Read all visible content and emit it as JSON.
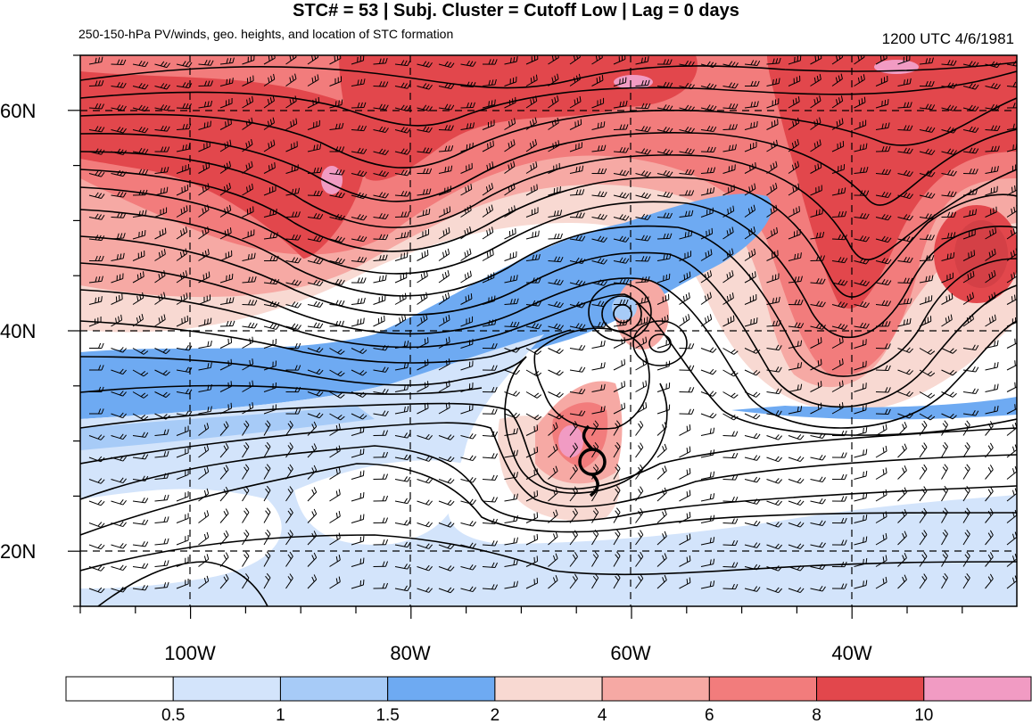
{
  "title": "STC# = 53 | Subj. Cluster = Cutoff Low | Lag = 0 days",
  "subtitle": "250-150-hPa PV/winds, geo. heights, and location of STC formation",
  "timestamp": "1200 UTC  4/6/1981",
  "map": {
    "lat_labels": [
      "60N",
      "40N",
      "20N"
    ],
    "lon_labels": [
      "100W",
      "80W",
      "60W",
      "40W"
    ],
    "marker_icon": "tropical-cyclone-symbol"
  },
  "colorbar": {
    "labels": [
      "0.5",
      "1",
      "1.5",
      "2",
      "4",
      "6",
      "8",
      "10"
    ],
    "colors": [
      "#ffffff",
      "#d3e4fb",
      "#a7cbf7",
      "#6eaaf2",
      "#f8d9d2",
      "#f6a9a4",
      "#f27c7c",
      "#e2474c",
      "#f19bc3"
    ]
  }
}
